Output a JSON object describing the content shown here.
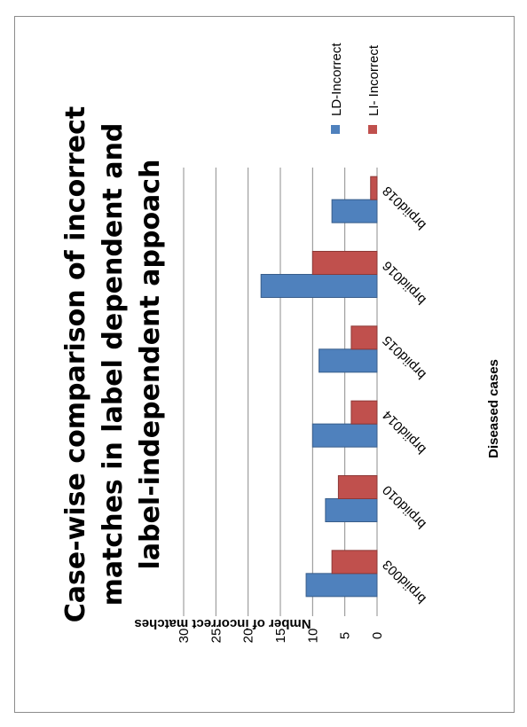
{
  "chart_data": {
    "type": "bar",
    "orientation": "horizontal-bars-rotated",
    "title_lines": [
      "Case-wise comparison of incorrect",
      "matches in label dependent and",
      "label-independent appoach"
    ],
    "xlabel": "Diseased cases",
    "ylabel": "Nmber of incorrect matches",
    "categories": [
      "brpiid003",
      "brpiid010",
      "brpiid014",
      "brpiid015",
      "brpiid016",
      "brpiid018"
    ],
    "series": [
      {
        "name": "LD-Incorrect",
        "color": "#4f81bd",
        "values": [
          11,
          8,
          10,
          9,
          18,
          7
        ]
      },
      {
        "name": "LI- Incorrect",
        "color": "#c0504d",
        "values": [
          7,
          6,
          4,
          4,
          10,
          1
        ]
      }
    ],
    "ylim": [
      0,
      30
    ],
    "yticks": [
      0,
      5,
      10,
      15,
      20,
      25,
      30
    ],
    "grid": true,
    "legend_position": "top-right"
  }
}
